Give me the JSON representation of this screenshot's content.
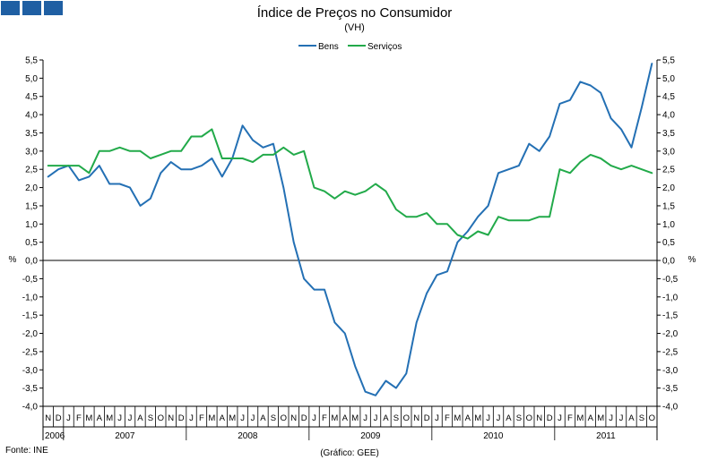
{
  "header": {
    "title": "Índice de Preços no Consumidor",
    "subtitle": "(VH)"
  },
  "footer": {
    "source": "Fonte: INE",
    "credit": "(Gráfico: GEE)"
  },
  "colors": {
    "bens": "#2470b4",
    "servicos": "#22aa4a",
    "logo": "#1f5fa3"
  },
  "chart_data": {
    "type": "line",
    "ylim": [
      -4.0,
      5.5
    ],
    "ystep": 0.5,
    "ylabel_left": "%",
    "ylabel_right": "%",
    "grid": false,
    "legend": "top-center",
    "month_labels": [
      "N",
      "D",
      "J",
      "F",
      "M",
      "A",
      "M",
      "J",
      "J",
      "A",
      "S",
      "O",
      "N",
      "D",
      "J",
      "F",
      "M",
      "A",
      "M",
      "J",
      "J",
      "A",
      "S",
      "O",
      "N",
      "D",
      "J",
      "F",
      "M",
      "A",
      "M",
      "J",
      "J",
      "A",
      "S",
      "O",
      "N",
      "D",
      "J",
      "F",
      "M",
      "A",
      "M",
      "J",
      "J",
      "A",
      "S",
      "O",
      "N",
      "D",
      "J",
      "F",
      "M",
      "A",
      "M",
      "J",
      "J",
      "A",
      "S",
      "O"
    ],
    "years": [
      {
        "label": "2006",
        "start": 0,
        "end": 2
      },
      {
        "label": "2007",
        "start": 2,
        "end": 14
      },
      {
        "label": "2008",
        "start": 14,
        "end": 26
      },
      {
        "label": "2009",
        "start": 26,
        "end": 38
      },
      {
        "label": "2010",
        "start": 38,
        "end": 50
      },
      {
        "label": "2011",
        "start": 50,
        "end": 60
      }
    ],
    "series": [
      {
        "name": "Bens",
        "values": [
          2.3,
          2.5,
          2.6,
          2.2,
          2.3,
          2.6,
          2.1,
          2.1,
          2.0,
          1.5,
          1.7,
          2.4,
          2.7,
          2.5,
          2.5,
          2.6,
          2.8,
          2.3,
          2.8,
          3.7,
          3.3,
          3.1,
          3.2,
          2.0,
          0.5,
          -0.5,
          -0.8,
          -0.8,
          -1.7,
          -2.0,
          -2.9,
          -3.6,
          -3.7,
          -3.3,
          -3.5,
          -3.1,
          -1.7,
          -0.9,
          -0.4,
          -0.3,
          0.5,
          0.8,
          1.2,
          1.5,
          2.4,
          2.5,
          2.6,
          3.2,
          3.0,
          3.4,
          4.3,
          4.4,
          4.9,
          4.8,
          4.6,
          3.9,
          3.6,
          3.1,
          4.2,
          5.4
        ]
      },
      {
        "name": "Serviços",
        "values": [
          2.6,
          2.6,
          2.6,
          2.6,
          2.4,
          3.0,
          3.0,
          3.1,
          3.0,
          3.0,
          2.8,
          2.9,
          3.0,
          3.0,
          3.4,
          3.4,
          3.6,
          2.8,
          2.8,
          2.8,
          2.7,
          2.9,
          2.9,
          3.1,
          2.9,
          3.0,
          2.0,
          1.9,
          1.7,
          1.9,
          1.8,
          1.9,
          2.1,
          1.9,
          1.4,
          1.2,
          1.2,
          1.3,
          1.0,
          1.0,
          0.7,
          0.6,
          0.8,
          0.7,
          1.2,
          1.1,
          1.1,
          1.1,
          1.2,
          1.2,
          2.5,
          2.4,
          2.7,
          2.9,
          2.8,
          2.6,
          2.5,
          2.6,
          2.5,
          2.4
        ]
      }
    ]
  }
}
